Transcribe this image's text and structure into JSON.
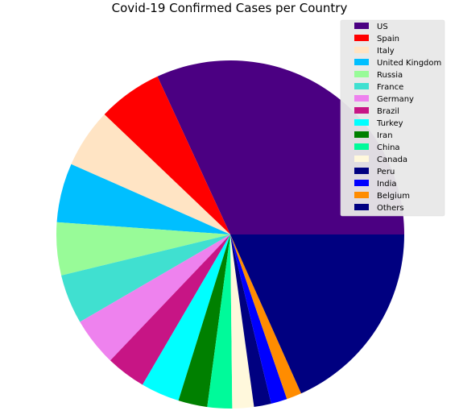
{
  "chart_data": {
    "type": "pie",
    "title": "Covid-19 Confirmed Cases per Country",
    "start_angle_deg": 0,
    "direction": "counterclockwise",
    "legend_position": "top-right",
    "slices": [
      {
        "label": "US",
        "value": 31.88,
        "color": "#4b0082"
      },
      {
        "label": "Spain",
        "value": 6.0,
        "color": "#ff0000"
      },
      {
        "label": "Italy",
        "value": 5.5,
        "color": "#ffe4c4"
      },
      {
        "label": "United Kingdom",
        "value": 5.5,
        "color": "#00bfff"
      },
      {
        "label": "Russia",
        "value": 4.9,
        "color": "#98fb98"
      },
      {
        "label": "France",
        "value": 4.6,
        "color": "#40e0d0"
      },
      {
        "label": "Germany",
        "value": 4.5,
        "color": "#ee82ee"
      },
      {
        "label": "Brazil",
        "value": 3.7,
        "color": "#c71585"
      },
      {
        "label": "Turkey",
        "value": 3.6,
        "color": "#00ffff"
      },
      {
        "label": "Iran",
        "value": 2.7,
        "color": "#008000"
      },
      {
        "label": "China",
        "value": 2.3,
        "color": "#00fa9a"
      },
      {
        "label": "Canada",
        "value": 2.0,
        "color": "#fff8dc"
      },
      {
        "label": "Peru",
        "value": 1.6,
        "color": "#000080"
      },
      {
        "label": "India",
        "value": 1.5,
        "color": "#0000ff"
      },
      {
        "label": "Belgium",
        "value": 1.4,
        "color": "#ff8c00"
      },
      {
        "label": "Others",
        "value": 18.32,
        "color": "#000080"
      }
    ]
  }
}
